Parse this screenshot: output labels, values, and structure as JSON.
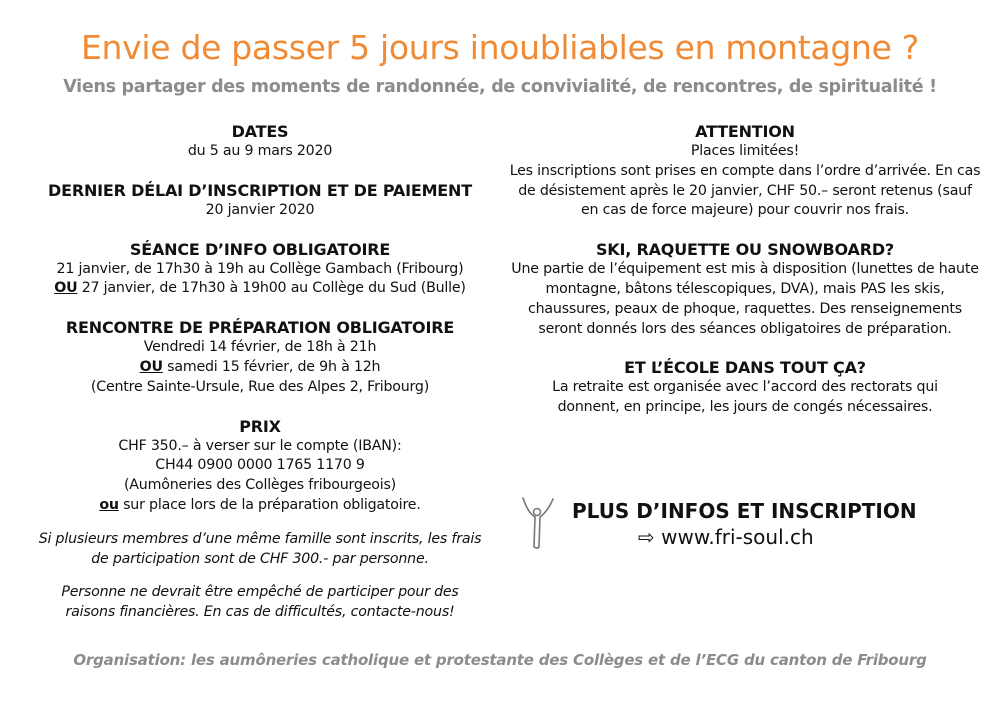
{
  "header": {
    "title": "Envie de passer 5 jours inoubliables en montagne ?",
    "subtitle": "Viens partager des moments de randonnée, de convivialité, de rencontres, de spiritualité !"
  },
  "left": {
    "dates": {
      "heading": "DATES",
      "text": "du 5 au 9 mars 2020"
    },
    "deadline": {
      "heading": "DERNIER DÉLAI D’INSCRIPTION ET DE PAIEMENT",
      "text": "20 janvier 2020"
    },
    "info_session": {
      "heading": "SÉANCE D’INFO OBLIGATOIRE",
      "line1": "21 janvier, de 17h30 à 19h au Collège Gambach (Fribourg)",
      "or": "OU",
      "line2": " 27 janvier, de 17h30 à 19h00 au Collège du Sud (Bulle)"
    },
    "prep": {
      "heading": "RENCONTRE DE PRÉPARATION OBLIGATOIRE",
      "line1": "Vendredi 14 février, de 18h à 21h",
      "or": "OU",
      "line2": " samedi 15 février, de 9h à 12h",
      "line3": "(Centre Sainte-Ursule, Rue des Alpes 2, Fribourg)"
    },
    "price": {
      "heading": "PRIX",
      "line1": "CHF 350.– à verser sur le compte (IBAN):",
      "line2": "CH44 0900 0000 1765 1170 9",
      "line3": "(Aumôneries des Collèges fribourgeois)",
      "or": "ou",
      "line4": " sur place lors de la préparation obligatoire."
    },
    "family_note": "Si plusieurs membres d’une même famille sont inscrits, les frais de participation sont de CHF 300.- par personne.",
    "finance_note": "Personne ne devrait être empêché de participer pour des raisons financières. En cas de difficultés, contacte-nous!"
  },
  "right": {
    "attention": {
      "heading": "ATTENTION",
      "line1": "Places limitées!",
      "text": "Les inscriptions sont prises en compte dans l’ordre d’arrivée. En cas de désistement après le 20 janvier, CHF 50.– seront retenus (sauf en cas de force majeure) pour couvrir nos frais."
    },
    "ski": {
      "heading": "SKI, RAQUETTE OU SNOWBOARD?",
      "text": "Une partie de l’équipement est mis à disposition (lunettes de haute montagne, bâtons télescopiques, DVA), mais PAS les skis, chaussures, peaux de phoque, raquettes. Des renseignements seront donnés lors des séances obligatoires de préparation."
    },
    "school": {
      "heading": "ET L’ÉCOLE DANS TOUT ÇA?",
      "text": "La retraite est organisée avec l’accord des rectorats qui donnent, en principe, les jours de congés nécessaires."
    },
    "more": {
      "heading": "PLUS D’INFOS ET INSCRIPTION",
      "arrow": "⇨",
      "url": "www.fri-soul.ch"
    }
  },
  "footer": "Organisation: les aumôneries catholique et protestante des Collèges et de l’ECG du canton de Fribourg",
  "colors": {
    "title": "#f08a35",
    "subtitle": "#8c8c8c"
  }
}
